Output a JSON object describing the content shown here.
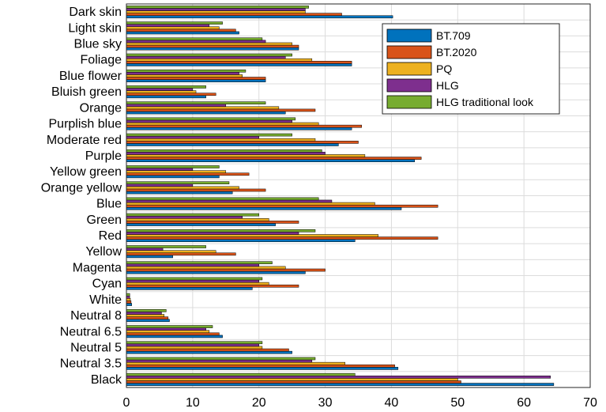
{
  "chart_data": {
    "type": "bar",
    "orientation": "horizontal",
    "categories": [
      "Dark skin",
      "Light skin",
      "Blue sky",
      "Foliage",
      "Blue flower",
      "Bluish green",
      "Orange",
      "Purplish blue",
      "Moderate red",
      "Purple",
      "Yellow green",
      "Orange yellow",
      "Blue",
      "Green",
      "Red",
      "Yellow",
      "Magenta",
      "Cyan",
      "White",
      "Neutral 8",
      "Neutral 6.5",
      "Neutral 5",
      "Neutral 3.5",
      "Black"
    ],
    "series": [
      {
        "name": "BT.709",
        "color": "#0072BD",
        "values": [
          40.2,
          17.0,
          26.0,
          34.0,
          21.0,
          12.0,
          24.0,
          34.0,
          32.0,
          43.5,
          14.0,
          16.0,
          41.5,
          22.5,
          34.5,
          7.0,
          27.0,
          19.0,
          0.8,
          6.5,
          14.5,
          25.0,
          41.0,
          64.5
        ]
      },
      {
        "name": "BT.2020",
        "color": "#D95319",
        "values": [
          32.5,
          16.5,
          26.0,
          34.0,
          21.0,
          13.5,
          28.5,
          35.5,
          35.0,
          44.5,
          18.5,
          21.0,
          47.0,
          26.0,
          47.0,
          16.5,
          30.0,
          26.0,
          0.7,
          6.3,
          14.0,
          24.5,
          40.5,
          50.5
        ]
      },
      {
        "name": "PQ",
        "color": "#EDB120",
        "values": [
          27.0,
          14.0,
          25.0,
          28.0,
          17.5,
          10.5,
          23.0,
          29.0,
          28.5,
          36.0,
          15.0,
          17.0,
          37.5,
          21.5,
          38.0,
          13.5,
          24.0,
          21.5,
          0.6,
          5.7,
          12.5,
          20.5,
          33.0,
          50.0
        ]
      },
      {
        "name": "HLG",
        "color": "#7E2F8E",
        "values": [
          27.0,
          12.5,
          21.0,
          24.0,
          17.0,
          10.0,
          15.0,
          25.0,
          20.0,
          30.0,
          10.0,
          10.0,
          31.0,
          17.5,
          26.0,
          5.5,
          20.0,
          20.0,
          0.5,
          5.3,
          12.0,
          20.0,
          28.0,
          64.0
        ]
      },
      {
        "name": "HLG traditional look",
        "color": "#77AC30",
        "values": [
          27.5,
          14.5,
          20.5,
          25.0,
          18.0,
          12.0,
          21.0,
          25.5,
          25.0,
          29.5,
          14.0,
          15.5,
          29.0,
          20.0,
          28.5,
          12.0,
          22.0,
          20.5,
          0.5,
          6.0,
          13.0,
          20.5,
          28.5,
          34.5
        ]
      }
    ],
    "xlim": [
      0,
      70
    ],
    "xticks": [
      "0",
      "10",
      "20",
      "30",
      "40",
      "50",
      "60",
      "70"
    ],
    "grid": true,
    "legend_position": "top-right"
  }
}
